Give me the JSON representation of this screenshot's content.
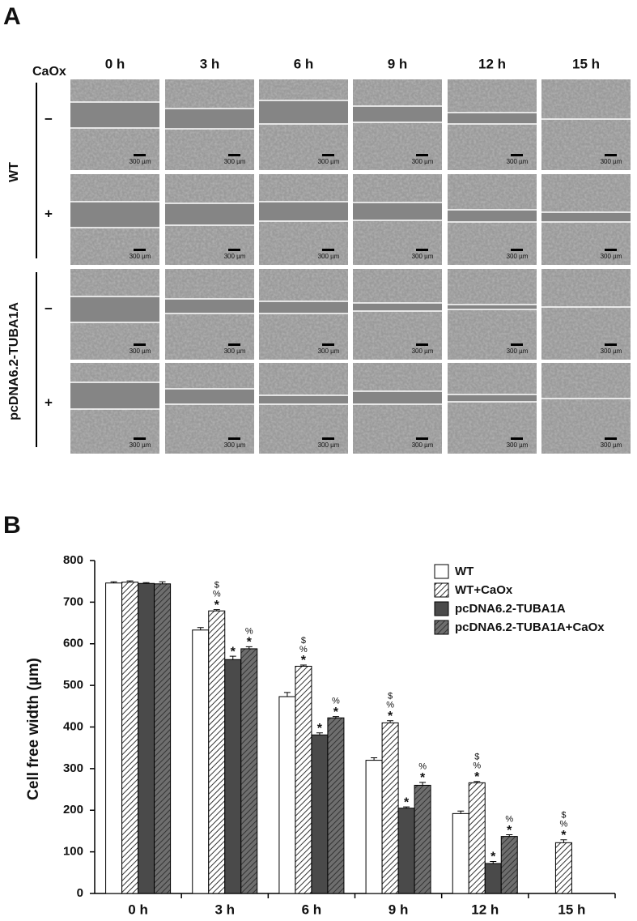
{
  "panel_a": {
    "label": "A",
    "corner_label": "CaOx",
    "columns": [
      "0 h",
      "3 h",
      "6 h",
      "9 h",
      "12 h",
      "15 h"
    ],
    "groups": [
      {
        "name": "WT",
        "rows": [
          "−",
          "+"
        ]
      },
      {
        "name": "pcDNA6.2-TUBA1A",
        "rows": [
          "−",
          "+"
        ]
      }
    ],
    "scale_label": "300 µm"
  },
  "panel_b_label": "B",
  "chart_data": {
    "type": "bar",
    "y_label": "Cell free width (µm)",
    "categories": [
      "0 h",
      "3 h",
      "6 h",
      "9 h",
      "12 h",
      "15 h"
    ],
    "ylim": [
      0,
      800
    ],
    "yticks": [
      0,
      100,
      200,
      300,
      400,
      500,
      600,
      700,
      800
    ],
    "legend": "upper right",
    "series": [
      {
        "name": "WT",
        "color": "#ffffff",
        "hatch": false,
        "values": [
          746,
          633,
          473,
          320,
          192,
          null
        ],
        "errors": [
          3,
          6,
          10,
          6,
          6,
          null
        ],
        "marks": [
          [],
          [],
          [],
          [],
          [],
          []
        ]
      },
      {
        "name": "WT+CaOx",
        "color": "#ffffff",
        "hatch": true,
        "values": [
          748,
          679,
          546,
          410,
          266,
          122
        ],
        "errors": [
          3,
          3,
          3,
          5,
          3,
          7
        ],
        "marks": [
          [],
          [
            "$",
            "%",
            "*"
          ],
          [
            "$",
            "%",
            "*"
          ],
          [
            "$",
            "%",
            "*"
          ],
          [
            "$",
            "%",
            "*"
          ],
          [
            "$",
            "%",
            "*"
          ]
        ]
      },
      {
        "name": "pcDNA6.2-TUBA1A",
        "color": "#4a4a4a",
        "hatch": false,
        "values": [
          745,
          562,
          381,
          205,
          72,
          null
        ],
        "errors": [
          2,
          8,
          5,
          3,
          5,
          null
        ],
        "marks": [
          [],
          [
            "*"
          ],
          [
            "*"
          ],
          [
            "*"
          ],
          [
            "*"
          ],
          []
        ]
      },
      {
        "name": "pcDNA6.2-TUBA1A+CaOx",
        "color": "#6e6e6e",
        "hatch": true,
        "values": [
          744,
          588,
          422,
          260,
          137,
          null
        ],
        "errors": [
          5,
          5,
          3,
          7,
          4,
          null
        ],
        "marks": [
          [],
          [
            "%",
            "*"
          ],
          [
            "%",
            "*"
          ],
          [
            "%",
            "*"
          ],
          [
            "%",
            "*"
          ],
          []
        ]
      }
    ]
  }
}
